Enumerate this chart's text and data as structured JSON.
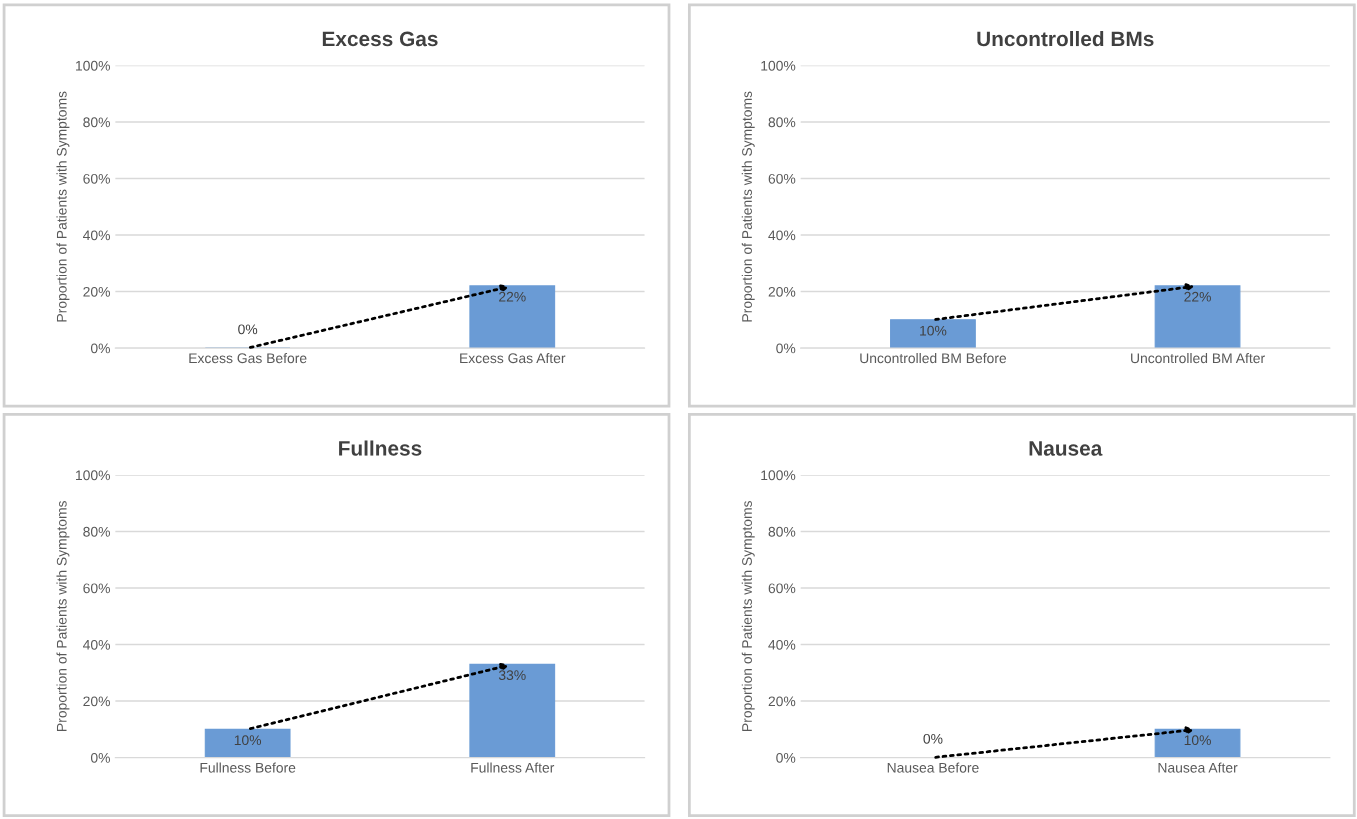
{
  "chart_data": [
    {
      "type": "bar",
      "title": "Excess Gas",
      "ylabel": "Proportion of Patients with Symptoms",
      "categories": [
        "Excess Gas Before",
        "Excess Gas After"
      ],
      "values": [
        0,
        22
      ],
      "value_labels": [
        "0%",
        "22%"
      ],
      "color": "#6a9bd5",
      "ylim": [
        0,
        100
      ],
      "yticks": [
        {
          "value": 0,
          "label": "0%"
        },
        {
          "value": 20,
          "label": "20%"
        },
        {
          "value": 40,
          "label": "40%"
        },
        {
          "value": 60,
          "label": "60%"
        },
        {
          "value": 80,
          "label": "80%"
        },
        {
          "value": 100,
          "label": "100%"
        }
      ],
      "grid": "y"
    },
    {
      "type": "bar",
      "title": "Uncontrolled BMs",
      "ylabel": "Proportion of Patients with Symptoms",
      "categories": [
        "Uncontrolled BM Before",
        "Uncontrolled BM After"
      ],
      "values": [
        10,
        22
      ],
      "value_labels": [
        "10%",
        "22%"
      ],
      "color": "#6a9bd5",
      "ylim": [
        0,
        100
      ],
      "yticks": [
        {
          "value": 0,
          "label": "0%"
        },
        {
          "value": 20,
          "label": "20%"
        },
        {
          "value": 40,
          "label": "40%"
        },
        {
          "value": 60,
          "label": "60%"
        },
        {
          "value": 80,
          "label": "80%"
        },
        {
          "value": 100,
          "label": "100%"
        }
      ],
      "grid": "y"
    },
    {
      "type": "bar",
      "title": "Fullness",
      "ylabel": "Proportion of Patients with Symptoms",
      "categories": [
        "Fullness Before",
        "Fullness After"
      ],
      "values": [
        10,
        33
      ],
      "value_labels": [
        "10%",
        "33%"
      ],
      "color": "#6a9bd5",
      "ylim": [
        0,
        100
      ],
      "yticks": [
        {
          "value": 0,
          "label": "0%"
        },
        {
          "value": 20,
          "label": "20%"
        },
        {
          "value": 40,
          "label": "40%"
        },
        {
          "value": 60,
          "label": "60%"
        },
        {
          "value": 80,
          "label": "80%"
        },
        {
          "value": 100,
          "label": "100%"
        }
      ],
      "grid": "y"
    },
    {
      "type": "bar",
      "title": "Nausea",
      "ylabel": "Proportion of Patients with Symptoms",
      "categories": [
        "Nausea Before",
        "Nausea After"
      ],
      "values": [
        0,
        10
      ],
      "value_labels": [
        "0%",
        "10%"
      ],
      "color": "#6a9bd5",
      "ylim": [
        0,
        100
      ],
      "yticks": [
        {
          "value": 0,
          "label": "0%"
        },
        {
          "value": 20,
          "label": "20%"
        },
        {
          "value": 40,
          "label": "40%"
        },
        {
          "value": 60,
          "label": "60%"
        },
        {
          "value": 80,
          "label": "80%"
        },
        {
          "value": 100,
          "label": "100%"
        }
      ],
      "grid": "y"
    }
  ]
}
